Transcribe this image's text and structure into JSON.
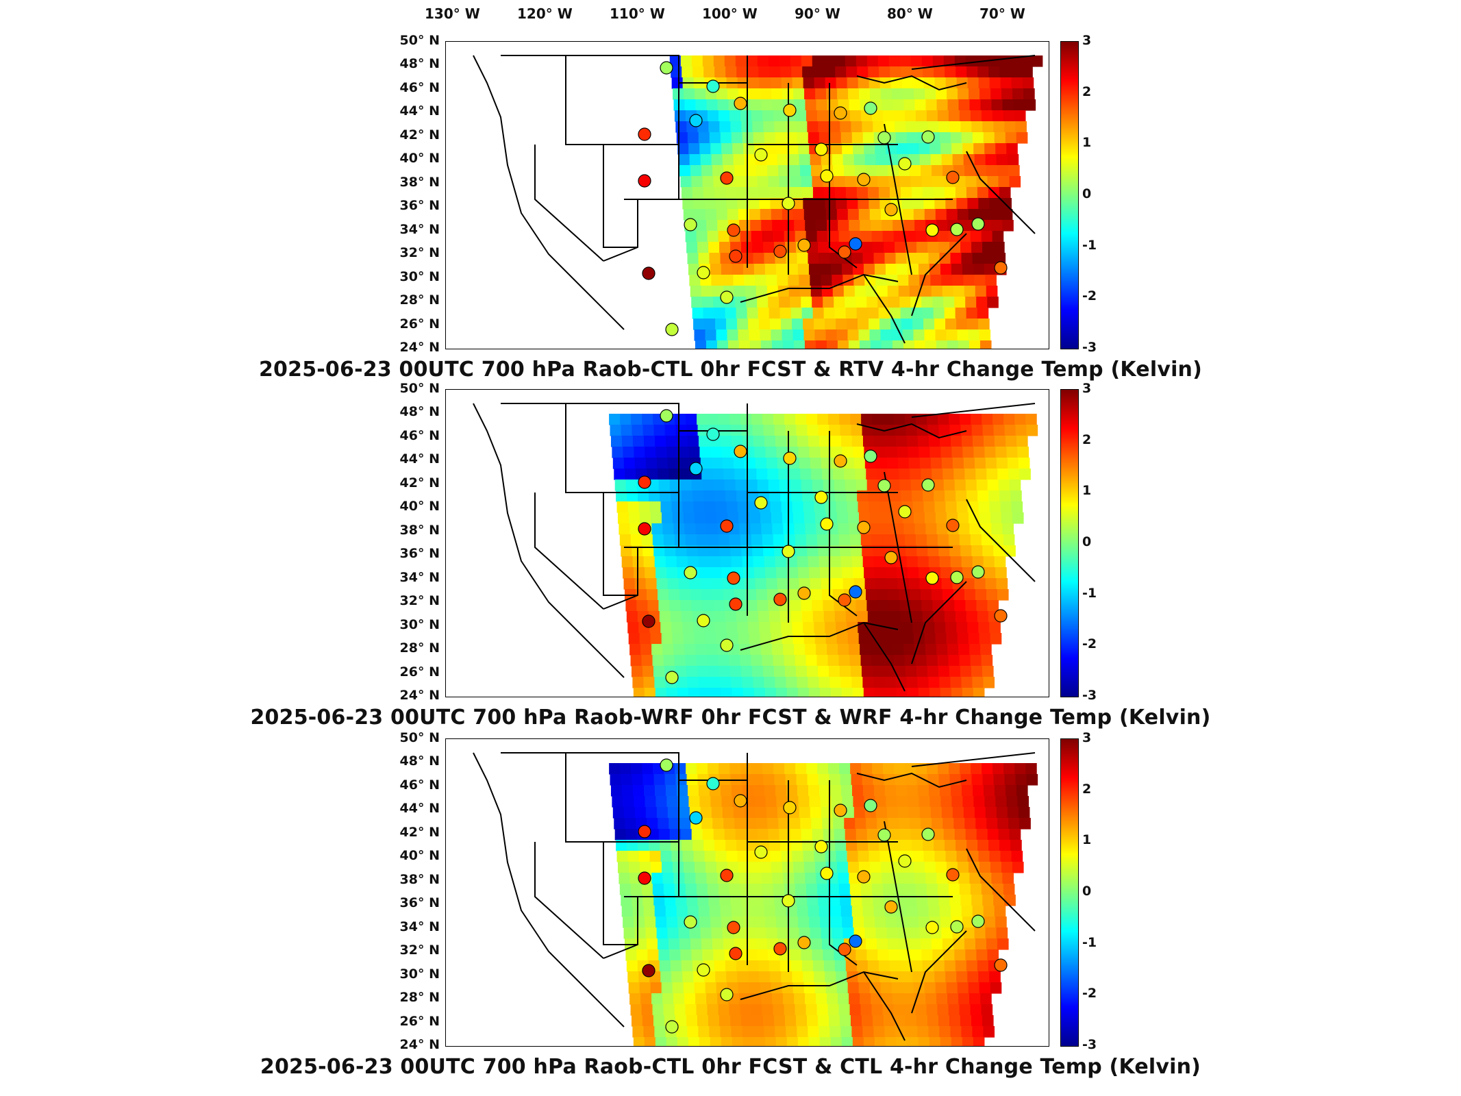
{
  "lon_labels": [
    "130° W",
    "120° W",
    "110° W",
    "100° W",
    "90° W",
    "80° W",
    "70° W"
  ],
  "lat_labels": [
    "50° N",
    "48° N",
    "46° N",
    "44° N",
    "42° N",
    "40° N",
    "38° N",
    "36° N",
    "34° N",
    "32° N",
    "30° N",
    "28° N",
    "26° N",
    "24° N"
  ],
  "colorbar": {
    "ticks": [
      "3",
      "2",
      "1",
      "0",
      "-1",
      "-2",
      "-3"
    ],
    "range": [
      -3,
      3
    ],
    "colormap": "jet",
    "units": "Kelvin"
  },
  "panels": [
    {
      "title": "2025-06-23 00UTC 700 hPa Raob-CTL 0hr FCST & RTV 4-hr Change Temp (Kelvin)"
    },
    {
      "title": "2025-06-23 00UTC 700 hPa Raob-WRF 0hr FCST & WRF 4-hr Change Temp (Kelvin)"
    },
    {
      "title": "2025-06-23 00UTC 700 hPa Raob-CTL 0hr FCST & CTL 4-hr Change Temp (Kelvin)"
    }
  ],
  "map": {
    "projection": "lat-lon",
    "lon_range": [
      -130,
      -65
    ],
    "lat_range": [
      24,
      50
    ],
    "raob_marker": "circle-colored-by-difference"
  }
}
